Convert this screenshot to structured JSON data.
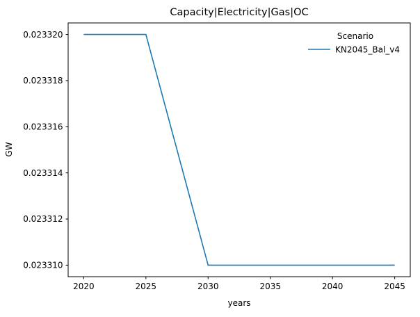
{
  "chart_data": {
    "type": "line",
    "title": "Capacity|Electricity|Gas|OC",
    "xlabel": "years",
    "ylabel": "GW",
    "x": [
      2020,
      2025,
      2030,
      2035,
      2040,
      2045
    ],
    "series": [
      {
        "name": "KN2045_Bal_v4",
        "color": "#1f77b4",
        "values": [
          0.02332,
          0.02332,
          0.02331,
          0.02331,
          0.02331,
          0.02331
        ]
      }
    ],
    "xlim": [
      2018.75,
      2046.25
    ],
    "ylim": [
      0.0233095,
      0.0233205
    ],
    "x_ticks": {
      "values": [
        2020,
        2025,
        2030,
        2035,
        2040,
        2045
      ],
      "labels": [
        "2020",
        "2025",
        "2030",
        "2035",
        "2040",
        "2045"
      ]
    },
    "y_ticks": {
      "values": [
        0.02331,
        0.023312,
        0.023314,
        0.023316,
        0.023318,
        0.02332
      ],
      "labels": [
        "0.023310",
        "0.023312",
        "0.023314",
        "0.023316",
        "0.023318",
        "0.023320"
      ]
    },
    "grid": false,
    "legend": {
      "title": "Scenario",
      "entries": [
        "KN2045_Bal_v4"
      ],
      "position": "upper right",
      "frame": false
    }
  }
}
